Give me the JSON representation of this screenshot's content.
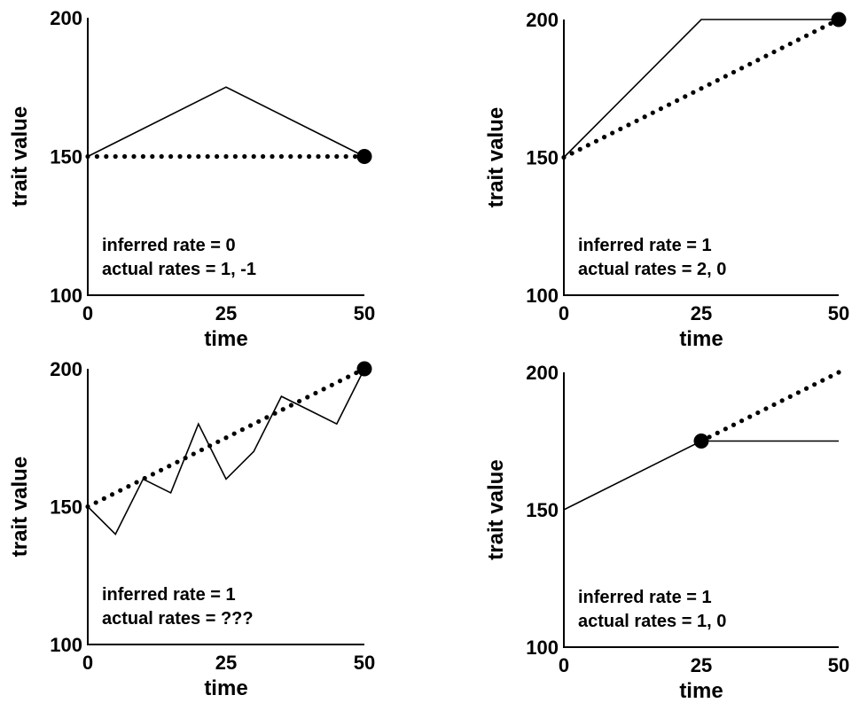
{
  "chart_data": [
    {
      "type": "line",
      "xlabel": "time",
      "ylabel": "trait value",
      "xlim": [
        0,
        50
      ],
      "ylim": [
        100,
        200
      ],
      "xticks": [
        "0",
        "25",
        "50"
      ],
      "yticks": [
        "100",
        "150",
        "200"
      ],
      "series": [
        {
          "role": "actual",
          "style": "solid",
          "x": [
            0,
            25,
            50
          ],
          "y": [
            150,
            175,
            150
          ]
        },
        {
          "role": "inferred",
          "style": "dotted",
          "x": [
            0,
            50
          ],
          "y": [
            150,
            150
          ]
        }
      ],
      "endpoint": {
        "x": 50,
        "y": 150
      },
      "annotations": [
        "inferred rate = 0",
        "actual rates = 1,  -1"
      ]
    },
    {
      "type": "line",
      "xlabel": "time",
      "ylabel": "trait value",
      "xlim": [
        0,
        50
      ],
      "ylim": [
        100,
        200
      ],
      "xticks": [
        "0",
        "25",
        "50"
      ],
      "yticks": [
        "100",
        "150",
        "200"
      ],
      "series": [
        {
          "role": "actual",
          "style": "solid",
          "x": [
            0,
            25,
            50
          ],
          "y": [
            150,
            200,
            200
          ]
        },
        {
          "role": "inferred",
          "style": "dotted",
          "x": [
            0,
            50
          ],
          "y": [
            150,
            200
          ]
        }
      ],
      "endpoint": {
        "x": 50,
        "y": 200
      },
      "annotations": [
        "inferred rate = 1",
        "actual rates = 2, 0"
      ]
    },
    {
      "type": "line",
      "xlabel": "time",
      "ylabel": "trait value",
      "xlim": [
        0,
        50
      ],
      "ylim": [
        100,
        200
      ],
      "xticks": [
        "0",
        "25",
        "50"
      ],
      "yticks": [
        "100",
        "150",
        "200"
      ],
      "series": [
        {
          "role": "actual",
          "style": "solid",
          "x": [
            0,
            5,
            10,
            15,
            20,
            25,
            30,
            35,
            40,
            45,
            50
          ],
          "y": [
            150,
            140,
            160,
            155,
            180,
            160,
            170,
            190,
            185,
            180,
            200
          ]
        },
        {
          "role": "inferred",
          "style": "dotted",
          "x": [
            0,
            50
          ],
          "y": [
            150,
            200
          ]
        }
      ],
      "endpoint": {
        "x": 50,
        "y": 200
      },
      "annotations": [
        "inferred rate = 1",
        "actual rates = ???"
      ]
    },
    {
      "type": "line",
      "xlabel": "time",
      "ylabel": "trait value",
      "xlim": [
        0,
        50
      ],
      "ylim": [
        100,
        200
      ],
      "xticks": [
        "0",
        "25",
        "50"
      ],
      "yticks": [
        "100",
        "150",
        "200"
      ],
      "series": [
        {
          "role": "actual",
          "style": "solid",
          "x": [
            0,
            25,
            50
          ],
          "y": [
            150,
            175,
            175
          ]
        },
        {
          "role": "inferred",
          "style": "dotted",
          "x": [
            25,
            50
          ],
          "y": [
            175,
            200
          ]
        }
      ],
      "endpoint": {
        "x": 25,
        "y": 175
      },
      "annotations": [
        "inferred rate = 1",
        "actual rates = 1, 0"
      ]
    }
  ]
}
